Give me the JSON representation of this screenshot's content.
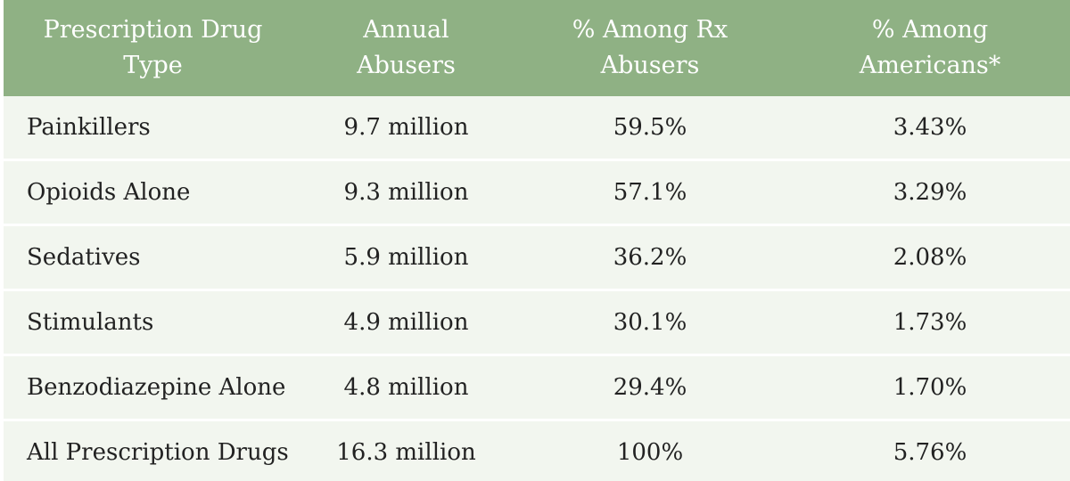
{
  "table": {
    "headers": [
      [
        "Prescription Drug",
        "Type"
      ],
      [
        "Annual",
        "Abusers"
      ],
      [
        "% Among Rx",
        "Abusers"
      ],
      [
        "% Among",
        "Americans*"
      ]
    ],
    "rows": [
      [
        "Painkillers",
        "9.7 million",
        "59.5%",
        "3.43%"
      ],
      [
        "Opioids Alone",
        "9.3 million",
        "57.1%",
        "3.29%"
      ],
      [
        "Sedatives",
        "5.9 million",
        "36.2%",
        "2.08%"
      ],
      [
        "Stimulants",
        "4.9 million",
        "30.1%",
        "1.73%"
      ],
      [
        "Benzodiazepine Alone",
        "4.8 million",
        "29.4%",
        "1.70%"
      ],
      [
        "All Prescription Drugs",
        "16.3 million",
        "100%",
        "5.76%"
      ]
    ]
  },
  "colors": {
    "header_bg": "#8fb184",
    "header_text": "#ffffff",
    "row_bg": "#f2f6ef",
    "row_divider": "#ffffff",
    "body_text": "#222222"
  }
}
